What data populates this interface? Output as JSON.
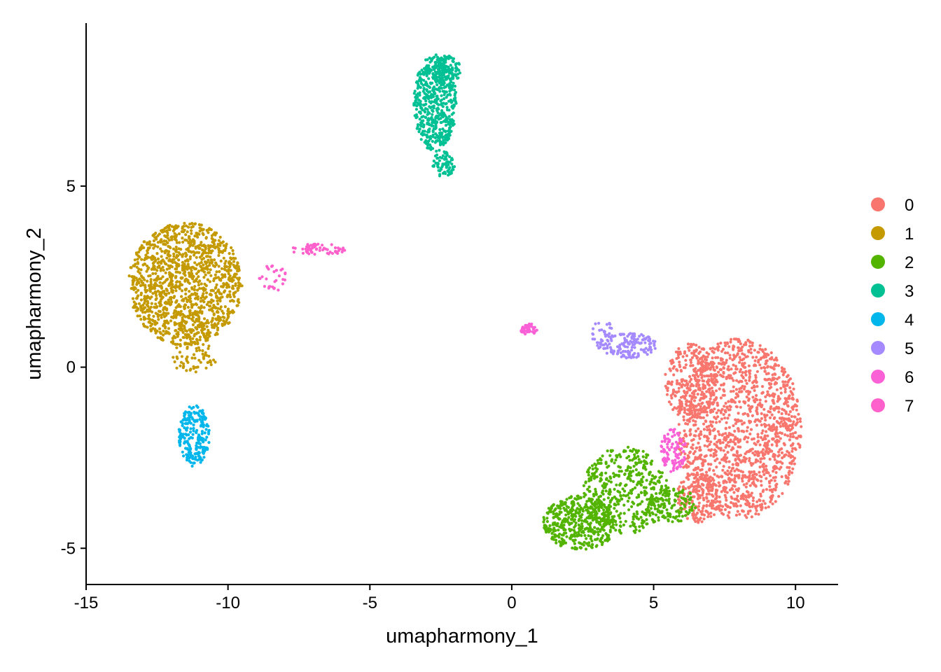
{
  "chart_data": {
    "type": "scatter",
    "xlabel": "umapharmony_1",
    "ylabel": "umapharmony_2",
    "xlim": [
      -15,
      11.5
    ],
    "ylim": [
      -6,
      9.5
    ],
    "x_ticks": [
      -15,
      -10,
      -5,
      0,
      5,
      10
    ],
    "y_ticks": [
      -5,
      0,
      5
    ],
    "grid": false,
    "legend_position": "right",
    "series": [
      {
        "name": "0",
        "color": "#F8766D",
        "clusters": [
          {
            "cx": 8.0,
            "cy": -1.7,
            "rx": 2.2,
            "ry": 2.5,
            "n": 1500
          },
          {
            "cx": 6.3,
            "cy": -0.4,
            "rx": 0.9,
            "ry": 1.1,
            "n": 250
          },
          {
            "cx": 6.6,
            "cy": -3.6,
            "rx": 0.8,
            "ry": 0.7,
            "n": 150
          }
        ]
      },
      {
        "name": "1",
        "color": "#C49A00",
        "clusters": [
          {
            "cx": -11.5,
            "cy": 2.3,
            "rx": 2.0,
            "ry": 1.7,
            "n": 1300
          },
          {
            "cx": -11.2,
            "cy": 0.3,
            "rx": 0.8,
            "ry": 0.5,
            "n": 60
          }
        ]
      },
      {
        "name": "2",
        "color": "#53B400",
        "clusters": [
          {
            "cx": 2.4,
            "cy": -4.3,
            "rx": 1.3,
            "ry": 0.75,
            "n": 450
          },
          {
            "cx": 4.0,
            "cy": -3.4,
            "rx": 1.5,
            "ry": 1.2,
            "n": 450
          },
          {
            "cx": 5.6,
            "cy": -3.8,
            "rx": 0.9,
            "ry": 0.5,
            "n": 120
          }
        ]
      },
      {
        "name": "3",
        "color": "#00C094",
        "clusters": [
          {
            "cx": -2.7,
            "cy": 7.3,
            "rx": 0.75,
            "ry": 1.35,
            "n": 550
          },
          {
            "cx": -2.3,
            "cy": 8.2,
            "rx": 0.5,
            "ry": 0.4,
            "n": 100
          },
          {
            "cx": -2.4,
            "cy": 5.6,
            "rx": 0.4,
            "ry": 0.35,
            "n": 70
          }
        ]
      },
      {
        "name": "4",
        "color": "#00B6EB",
        "clusters": [
          {
            "cx": -11.2,
            "cy": -1.9,
            "rx": 0.55,
            "ry": 0.85,
            "n": 220
          }
        ]
      },
      {
        "name": "5",
        "color": "#A58AFF",
        "clusters": [
          {
            "cx": 4.1,
            "cy": 0.6,
            "rx": 1.0,
            "ry": 0.35,
            "n": 150
          },
          {
            "cx": 3.2,
            "cy": 0.9,
            "rx": 0.4,
            "ry": 0.4,
            "n": 30
          }
        ]
      },
      {
        "name": "6",
        "color": "#FB61D7",
        "clusters": [
          {
            "cx": 0.6,
            "cy": 1.05,
            "rx": 0.3,
            "ry": 0.15,
            "n": 50
          },
          {
            "cx": 5.7,
            "cy": -2.3,
            "rx": 0.45,
            "ry": 0.6,
            "n": 100
          }
        ]
      },
      {
        "name": "7",
        "color": "#FF61CC",
        "clusters": [
          {
            "cx": -8.4,
            "cy": 2.5,
            "rx": 0.5,
            "ry": 0.4,
            "n": 30
          },
          {
            "cx": -6.8,
            "cy": 3.25,
            "rx": 1.0,
            "ry": 0.15,
            "n": 60
          }
        ]
      }
    ]
  }
}
